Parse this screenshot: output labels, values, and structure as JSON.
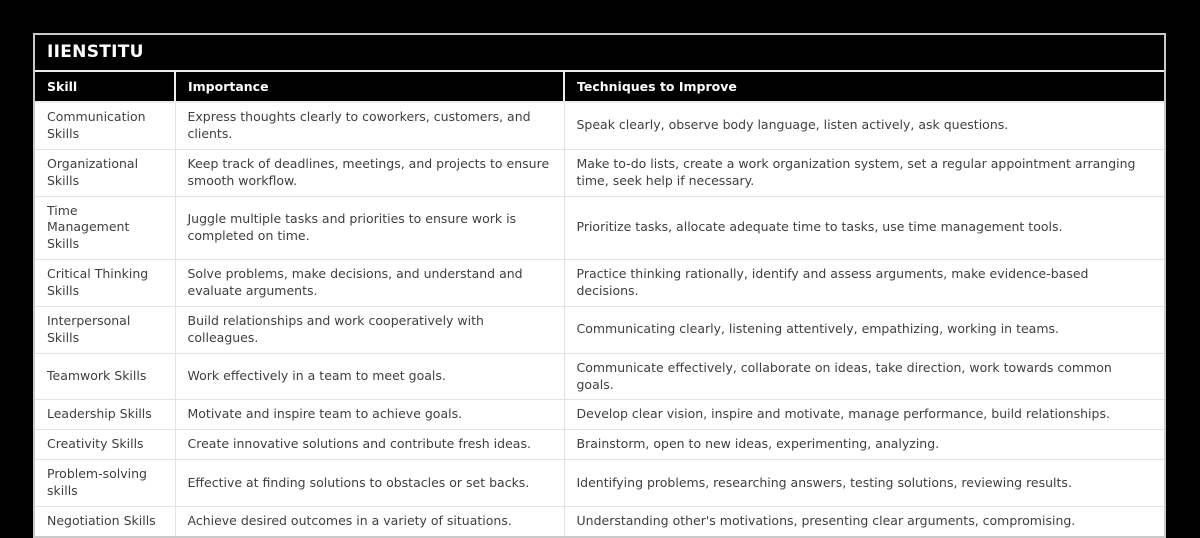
{
  "page": {
    "background_color": "#000000",
    "panel_border_color": "#c9c9c9",
    "header_bg_color": "#000000",
    "header_text_color": "#ffffff",
    "body_text_color": "#3f3f3f",
    "grid_line_color": "#e3e3e3"
  },
  "brand": {
    "title": "IIENSTITU"
  },
  "table": {
    "columns": [
      "Skill",
      "Importance",
      "Techniques to Improve"
    ],
    "rows": [
      {
        "skill": "Communication Skills",
        "importance": "Express thoughts clearly to coworkers, customers, and clients.",
        "techniques": "Speak clearly, observe body language, listen actively, ask questions."
      },
      {
        "skill": "Organizational Skills",
        "importance": "Keep track of deadlines, meetings, and projects to ensure smooth workflow.",
        "techniques": "Make to-do lists, create a work organization system, set a regular appointment arranging time, seek help if necessary."
      },
      {
        "skill": "Time Management Skills",
        "importance": "Juggle multiple tasks and priorities to ensure work is completed on time.",
        "techniques": "Prioritize tasks, allocate adequate time to tasks, use time management tools."
      },
      {
        "skill": "Critical Thinking Skills",
        "importance": "Solve problems, make decisions, and understand and evaluate arguments.",
        "techniques": "Practice thinking rationally, identify and assess arguments, make evidence-based decisions."
      },
      {
        "skill": "Interpersonal Skills",
        "importance": "Build relationships and work cooperatively with colleagues.",
        "techniques": "Communicating clearly, listening attentively, empathizing, working in teams."
      },
      {
        "skill": "Teamwork Skills",
        "importance": "Work effectively in a team to meet goals.",
        "techniques": "Communicate effectively, collaborate on ideas, take direction, work towards common goals."
      },
      {
        "skill": "Leadership Skills",
        "importance": "Motivate and inspire team to achieve goals.",
        "techniques": "Develop clear vision, inspire and motivate, manage performance, build relationships."
      },
      {
        "skill": "Creativity Skills",
        "importance": "Create innovative solutions and contribute fresh ideas.",
        "techniques": "Brainstorm, open to new ideas, experimenting, analyzing."
      },
      {
        "skill": "Problem-solving skills",
        "importance": "Effective at finding solutions to obstacles or set backs.",
        "techniques": "Identifying problems, researching answers, testing solutions, reviewing results."
      },
      {
        "skill": "Negotiation Skills",
        "importance": "Achieve desired outcomes in a variety of situations.",
        "techniques": "Understanding other's motivations, presenting clear arguments, compromising."
      }
    ]
  }
}
